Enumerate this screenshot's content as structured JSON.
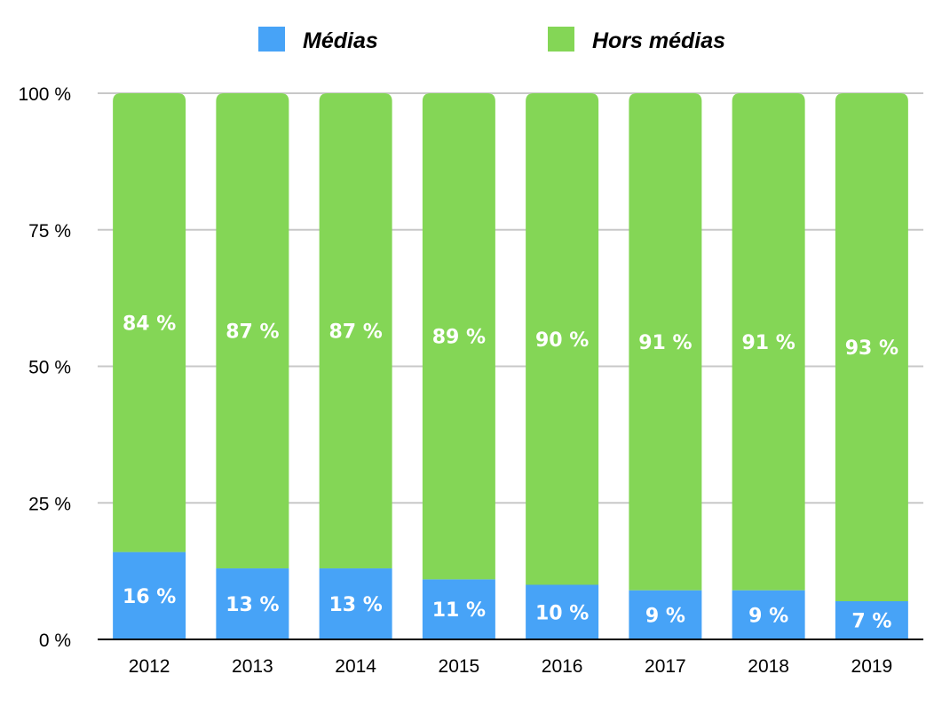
{
  "chart_data": {
    "type": "bar",
    "stacked": true,
    "categories": [
      "2012",
      "2013",
      "2014",
      "2015",
      "2016",
      "2017",
      "2018",
      "2019"
    ],
    "series": [
      {
        "name": "Médias",
        "color": "#47a3f7",
        "values": [
          16,
          13,
          13,
          11,
          10,
          9,
          9,
          7
        ],
        "labels": [
          "16 %",
          "13 %",
          "13 %",
          "11 %",
          "10 %",
          "9 %",
          "9 %",
          "7 %"
        ]
      },
      {
        "name": "Hors médias",
        "color": "#84d656",
        "values": [
          84,
          87,
          87,
          89,
          90,
          91,
          91,
          93
        ],
        "labels": [
          "84 %",
          "87 %",
          "87 %",
          "89 %",
          "90 %",
          "91 %",
          "91 %",
          "93 %"
        ]
      }
    ],
    "ylim": [
      0,
      100
    ],
    "yticks": [
      "0 %",
      "25 %",
      "50 %",
      "75 %",
      "100 %"
    ],
    "ytick_values": [
      0,
      25,
      50,
      75,
      100
    ],
    "grid": true,
    "legend_position": "top",
    "colors": {
      "grid": "#c8c8c8",
      "axis": "#000000"
    }
  }
}
